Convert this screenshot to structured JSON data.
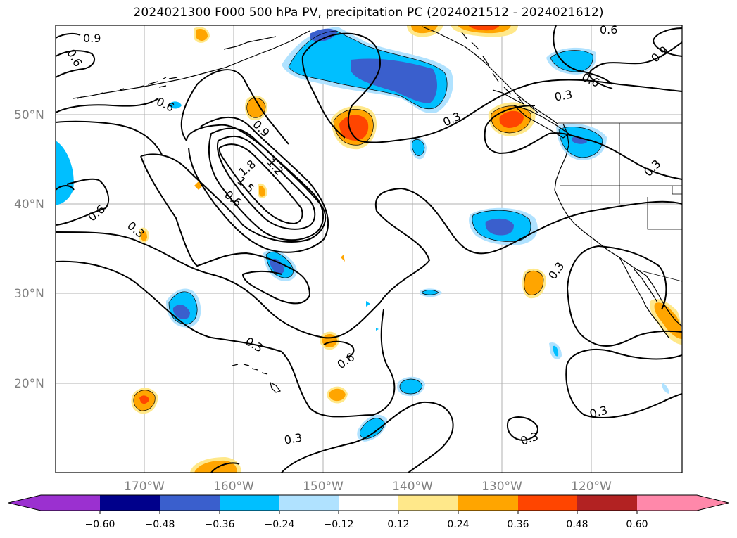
{
  "title": "2024021300 F000 500 hPa PV, precipitation PC (2024021512 - 2024021612)",
  "map": {
    "lat_labels": [
      "50°N",
      "40°N",
      "30°N",
      "20°N"
    ],
    "lon_labels": [
      "170°W",
      "160°W",
      "150°W",
      "140°W",
      "130°W",
      "120°W"
    ],
    "contour_labels": [
      "0.9",
      "0.6",
      "0.6",
      "0.9",
      "1.2",
      "1.8",
      "1.5",
      "0.6",
      "0.6",
      "0.3",
      "0.3",
      "0.3",
      "0.6",
      "0.3",
      "0.3",
      "0.6",
      "0.9",
      "0.6",
      "0.3",
      "0.3",
      "0.3",
      "0.3"
    ]
  },
  "colorbar": {
    "tick_labels": [
      "−0.60",
      "−0.48",
      "−0.36",
      "−0.24",
      "−0.12",
      "0.12",
      "0.24",
      "0.36",
      "0.48",
      "0.60"
    ],
    "colors": [
      "#9b30d0",
      "#00008b",
      "#3a5fcd",
      "#00bfff",
      "#b0e2ff",
      "#ffffff",
      "#ffe88a",
      "#ffa500",
      "#ff4500",
      "#b22222",
      "#ff88aa"
    ]
  }
}
